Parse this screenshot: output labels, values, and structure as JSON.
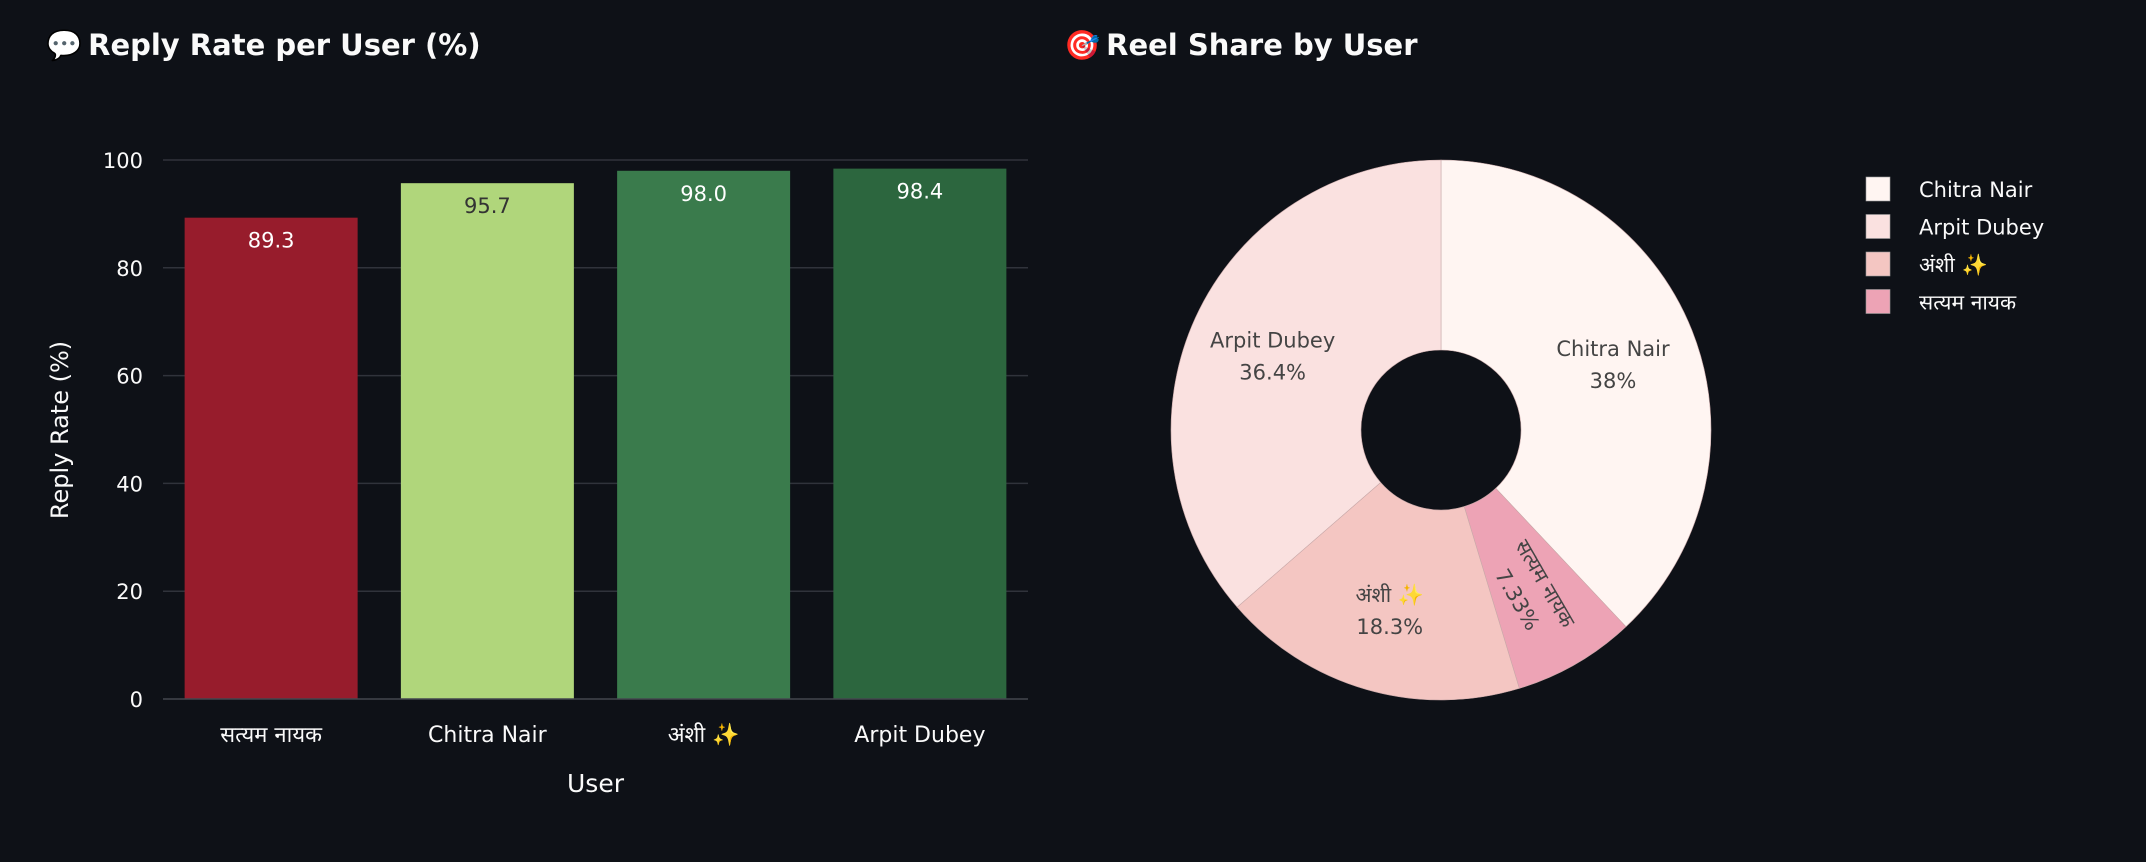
{
  "charts_titles": {
    "bar": {
      "icon": "speech-bubble-icon",
      "glyph": "💬",
      "text": "Reply Rate per User (%)"
    },
    "pie": {
      "icon": "direct-hit-icon",
      "glyph": "🎯",
      "text": "Reel Share by User"
    }
  },
  "colors": {
    "background": "#0e1117",
    "grid": "#30333b",
    "text": "#fafafa"
  },
  "chart_data": [
    {
      "type": "bar",
      "title": "Reply Rate per User (%)",
      "xlabel": "User",
      "ylabel": "Reply Rate (%)",
      "categories": [
        "सत्यम नायक",
        "Chitra Nair",
        "अंशी ✨",
        "Arpit Dubey"
      ],
      "values": [
        89.3,
        95.7,
        98.0,
        98.4
      ],
      "value_labels": [
        "89.3",
        "95.7",
        "98.0",
        "98.4"
      ],
      "colors": [
        "#971c2c",
        "#b0d67b",
        "#3a7b4c",
        "#2c663e"
      ],
      "label_colors": [
        "#ffffff",
        "#333333",
        "#ffffff",
        "#ffffff"
      ],
      "ylim": [
        0,
        100
      ],
      "yticks": [
        0,
        20,
        40,
        60,
        80,
        100
      ],
      "grid": true
    },
    {
      "type": "pie",
      "title": "Reel Share by User",
      "hole": true,
      "slices": [
        {
          "label": "Chitra Nair",
          "value": 38,
          "text": "38%",
          "color": "#fff5f2"
        },
        {
          "label": "सत्यम नायक",
          "value": 7.33,
          "text": "7.33%",
          "color": "#eda3b5"
        },
        {
          "label": "अंशी ✨",
          "value": 18.3,
          "text": "18.3%",
          "color": "#f4c6c2"
        },
        {
          "label": "Arpit Dubey",
          "value": 36.4,
          "text": "36.4%",
          "color": "#fae1e0"
        }
      ],
      "legend": [
        "Chitra Nair",
        "Arpit Dubey",
        "अंशी ✨",
        "सत्यम नायक"
      ],
      "legend_placement": "top-right"
    }
  ]
}
